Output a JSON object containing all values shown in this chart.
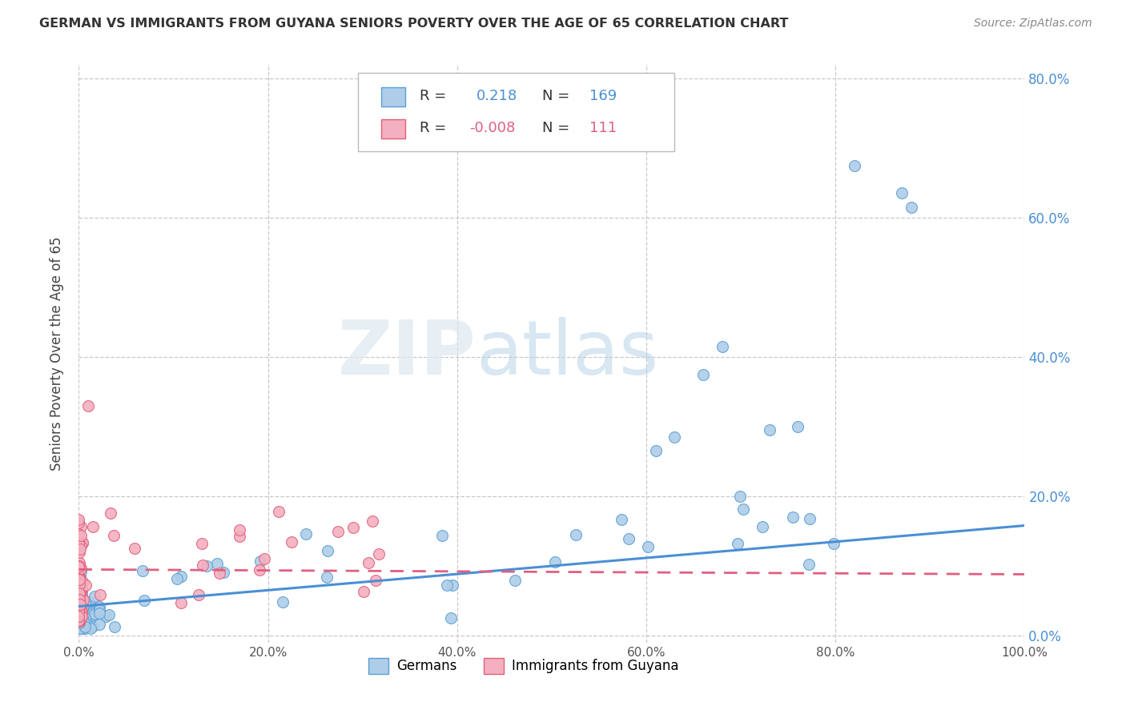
{
  "title": "GERMAN VS IMMIGRANTS FROM GUYANA SENIORS POVERTY OVER THE AGE OF 65 CORRELATION CHART",
  "source": "Source: ZipAtlas.com",
  "ylabel": "Seniors Poverty Over the Age of 65",
  "r_german": 0.218,
  "n_german": 169,
  "r_guyana": -0.008,
  "n_guyana": 111,
  "xlim": [
    0.0,
    1.0
  ],
  "ylim": [
    -0.01,
    0.82
  ],
  "xticks": [
    0.0,
    0.2,
    0.4,
    0.6,
    0.8,
    1.0
  ],
  "yticks": [
    0.0,
    0.2,
    0.4,
    0.6,
    0.8
  ],
  "ytick_labels_left": [
    "",
    "",
    "",
    "",
    ""
  ],
  "ytick_labels_right": [
    "0.0%",
    "20.0%",
    "40.0%",
    "60.0%",
    "80.0%"
  ],
  "xtick_labels": [
    "0.0%",
    "20.0%",
    "40.0%",
    "60.0%",
    "80.0%",
    "100.0%"
  ],
  "color_german": "#aecde8",
  "color_guyana": "#f4afc0",
  "edge_german": "#5b9fd4",
  "edge_guyana": "#e0607a",
  "line_german": "#4a8fd4",
  "line_guyana": "#e06080",
  "background": "#ffffff",
  "grid_color": "#c8c8c8",
  "watermark_zip": "ZIP",
  "watermark_atlas": "atlas",
  "legend_r_color": "#4a8fd4",
  "legend_r2_color": "#e06080"
}
